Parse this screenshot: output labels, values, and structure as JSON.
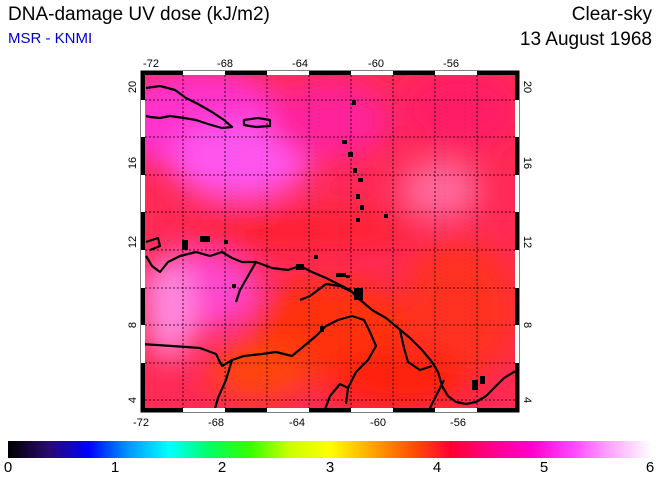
{
  "header": {
    "title": "DNA-damage UV dose (kJ/m2)",
    "source": "MSR - KNMI",
    "condition": "Clear-sky",
    "date": "13 August 1968"
  },
  "map": {
    "lon_ticks": [
      "-72",
      "-68",
      "-64",
      "-60",
      "-56"
    ],
    "lat_ticks": [
      "4",
      "8",
      "12",
      "16",
      "20"
    ],
    "lon_range": [
      -73,
      -53
    ],
    "lat_range": [
      3,
      21
    ]
  },
  "colorbar": {
    "labels": [
      "0",
      "1",
      "2",
      "3",
      "4",
      "5",
      "6"
    ],
    "range": [
      0,
      6
    ],
    "colors": [
      "#000000",
      "#2a0a6e",
      "#0000ff",
      "#0099ff",
      "#00ffff",
      "#00ff66",
      "#33ff00",
      "#ccff00",
      "#ffff00",
      "#ffaa00",
      "#ff5500",
      "#ff0033",
      "#ff0088",
      "#ff00cc",
      "#ff44ff",
      "#ffaaff",
      "#ffffff"
    ]
  },
  "legend_colors": {
    "ocean_base": "#ff1f5a",
    "land_lines": "#000000"
  }
}
